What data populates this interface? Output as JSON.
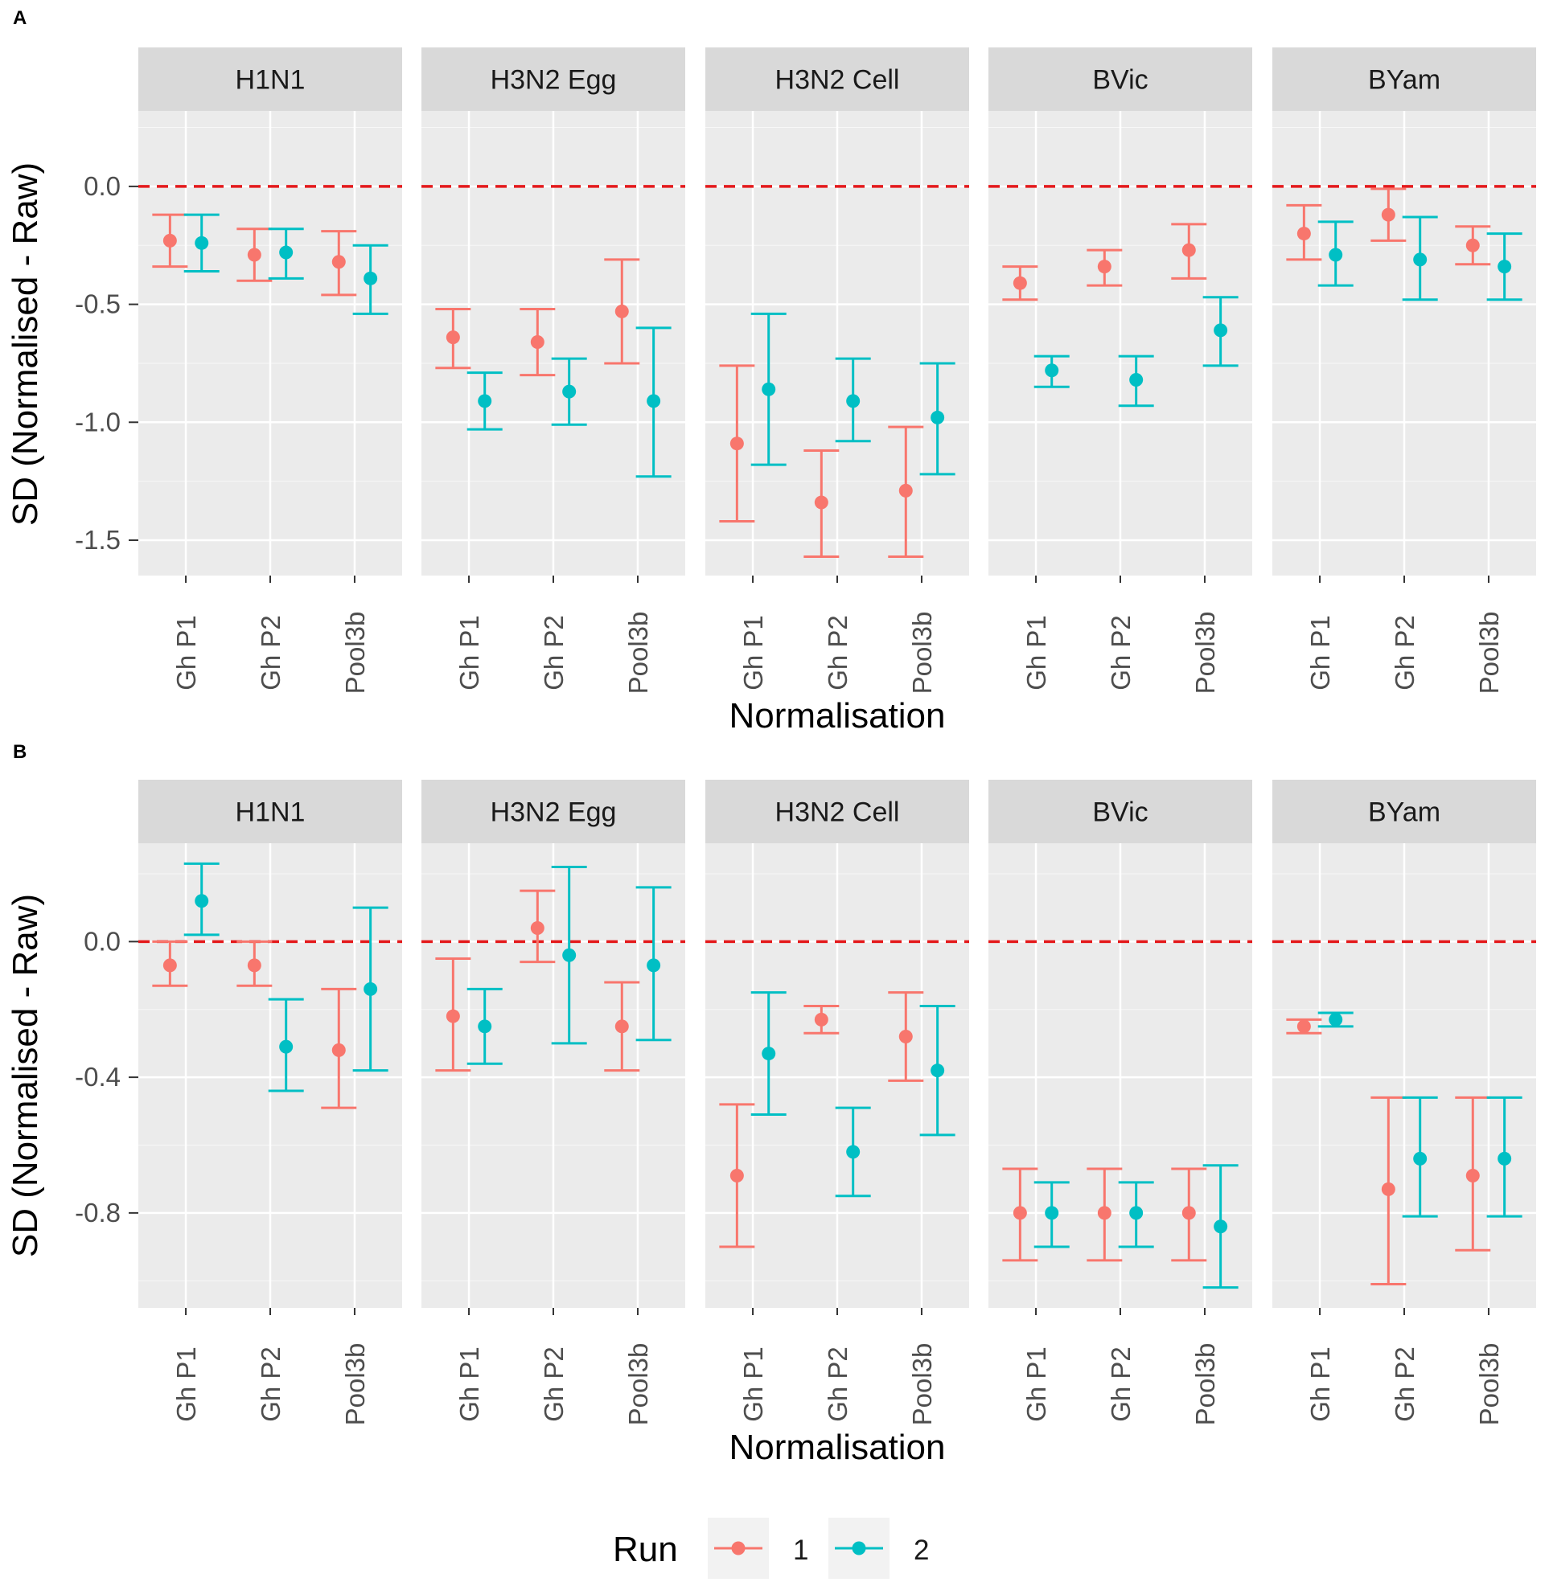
{
  "colors": {
    "run1": "#F8766D",
    "run2": "#00BFC4",
    "panel_bg": "#EBEBEB",
    "strip_bg": "#D9D9D9",
    "grid": "#FFFFFF",
    "ref_line": "#E41A1C",
    "tick": "#333333"
  },
  "legend": {
    "title": "Run",
    "entries": [
      {
        "label": "1",
        "series": "run1"
      },
      {
        "label": "2",
        "series": "run2"
      }
    ]
  },
  "chart_data": [
    {
      "panel": "A",
      "type": "errorbar",
      "xlabel": "Normalisation",
      "ylabel": "SD (Normalised - Raw)",
      "ylim": [
        -1.65,
        0.32
      ],
      "yticks": [
        0.0,
        -0.5,
        -1.0,
        -1.5
      ],
      "ytick_labels": [
        "0.0",
        "-0.5",
        "-1.0",
        "-1.5"
      ],
      "reference_line": 0.0,
      "categories": [
        "Gh P1",
        "Gh P2",
        "Pool3b"
      ],
      "facets": [
        {
          "label": "H1N1",
          "series": [
            {
              "run": "1",
              "mean": [
                -0.23,
                -0.29,
                -0.32
              ],
              "lower": [
                -0.34,
                -0.4,
                -0.46
              ],
              "upper": [
                -0.12,
                -0.18,
                -0.19
              ]
            },
            {
              "run": "2",
              "mean": [
                -0.24,
                -0.28,
                -0.39
              ],
              "lower": [
                -0.36,
                -0.39,
                -0.54
              ],
              "upper": [
                -0.12,
                -0.18,
                -0.25
              ]
            }
          ]
        },
        {
          "label": "H3N2 Egg",
          "series": [
            {
              "run": "1",
              "mean": [
                -0.64,
                -0.66,
                -0.53
              ],
              "lower": [
                -0.77,
                -0.8,
                -0.75
              ],
              "upper": [
                -0.52,
                -0.52,
                -0.31
              ]
            },
            {
              "run": "2",
              "mean": [
                -0.91,
                -0.87,
                -0.91
              ],
              "lower": [
                -1.03,
                -1.01,
                -1.23
              ],
              "upper": [
                -0.79,
                -0.73,
                -0.6
              ]
            }
          ]
        },
        {
          "label": "H3N2 Cell",
          "series": [
            {
              "run": "1",
              "mean": [
                -1.09,
                -1.34,
                -1.29
              ],
              "lower": [
                -1.42,
                -1.57,
                -1.57
              ],
              "upper": [
                -0.76,
                -1.12,
                -1.02
              ]
            },
            {
              "run": "2",
              "mean": [
                -0.86,
                -0.91,
                -0.98
              ],
              "lower": [
                -1.18,
                -1.08,
                -1.22
              ],
              "upper": [
                -0.54,
                -0.73,
                -0.75
              ]
            }
          ]
        },
        {
          "label": "BVic",
          "series": [
            {
              "run": "1",
              "mean": [
                -0.41,
                -0.34,
                -0.27
              ],
              "lower": [
                -0.48,
                -0.42,
                -0.39
              ],
              "upper": [
                -0.34,
                -0.27,
                -0.16
              ]
            },
            {
              "run": "2",
              "mean": [
                -0.78,
                -0.82,
                -0.61
              ],
              "lower": [
                -0.85,
                -0.93,
                -0.76
              ],
              "upper": [
                -0.72,
                -0.72,
                -0.47
              ]
            }
          ]
        },
        {
          "label": "BYam",
          "series": [
            {
              "run": "1",
              "mean": [
                -0.2,
                -0.12,
                -0.25
              ],
              "lower": [
                -0.31,
                -0.23,
                -0.33
              ],
              "upper": [
                -0.08,
                -0.01,
                -0.17
              ]
            },
            {
              "run": "2",
              "mean": [
                -0.29,
                -0.31,
                -0.34
              ],
              "lower": [
                -0.42,
                -0.48,
                -0.48
              ],
              "upper": [
                -0.15,
                -0.13,
                -0.2
              ]
            }
          ]
        }
      ]
    },
    {
      "panel": "B",
      "type": "errorbar",
      "xlabel": "Normalisation",
      "ylabel": "SD (Normalised - Raw)",
      "ylim": [
        -1.08,
        0.29
      ],
      "yticks": [
        0.0,
        -0.4,
        -0.8
      ],
      "ytick_labels": [
        "0.0",
        "-0.4",
        "-0.8"
      ],
      "reference_line": 0.0,
      "categories": [
        "Gh P1",
        "Gh P2",
        "Pool3b"
      ],
      "facets": [
        {
          "label": "H1N1",
          "series": [
            {
              "run": "1",
              "mean": [
                -0.07,
                -0.07,
                -0.32
              ],
              "lower": [
                -0.13,
                -0.13,
                -0.49
              ],
              "upper": [
                0.0,
                0.0,
                -0.14
              ]
            },
            {
              "run": "2",
              "mean": [
                0.12,
                -0.31,
                -0.14
              ],
              "lower": [
                0.02,
                -0.44,
                -0.38
              ],
              "upper": [
                0.23,
                -0.17,
                0.1
              ]
            }
          ]
        },
        {
          "label": "H3N2 Egg",
          "series": [
            {
              "run": "1",
              "mean": [
                -0.22,
                0.04,
                -0.25
              ],
              "lower": [
                -0.38,
                -0.06,
                -0.38
              ],
              "upper": [
                -0.05,
                0.15,
                -0.12
              ]
            },
            {
              "run": "2",
              "mean": [
                -0.25,
                -0.04,
                -0.07
              ],
              "lower": [
                -0.36,
                -0.3,
                -0.29
              ],
              "upper": [
                -0.14,
                0.22,
                0.16
              ]
            }
          ]
        },
        {
          "label": "H3N2 Cell",
          "series": [
            {
              "run": "1",
              "mean": [
                -0.69,
                -0.23,
                -0.28
              ],
              "lower": [
                -0.9,
                -0.27,
                -0.41
              ],
              "upper": [
                -0.48,
                -0.19,
                -0.15
              ]
            },
            {
              "run": "2",
              "mean": [
                -0.33,
                -0.62,
                -0.38
              ],
              "lower": [
                -0.51,
                -0.75,
                -0.57
              ],
              "upper": [
                -0.15,
                -0.49,
                -0.19
              ]
            }
          ]
        },
        {
          "label": "BVic",
          "series": [
            {
              "run": "1",
              "mean": [
                -0.8,
                -0.8,
                -0.8
              ],
              "lower": [
                -0.94,
                -0.94,
                -0.94
              ],
              "upper": [
                -0.67,
                -0.67,
                -0.67
              ]
            },
            {
              "run": "2",
              "mean": [
                -0.8,
                -0.8,
                -0.84
              ],
              "lower": [
                -0.9,
                -0.9,
                -1.02
              ],
              "upper": [
                -0.71,
                -0.71,
                -0.66
              ]
            }
          ]
        },
        {
          "label": "BYam",
          "series": [
            {
              "run": "1",
              "mean": [
                -0.25,
                -0.73,
                -0.69
              ],
              "lower": [
                -0.27,
                -1.01,
                -0.91
              ],
              "upper": [
                -0.23,
                -0.46,
                -0.46
              ]
            },
            {
              "run": "2",
              "mean": [
                -0.23,
                -0.64,
                -0.64
              ],
              "lower": [
                -0.25,
                -0.81,
                -0.81
              ],
              "upper": [
                -0.21,
                -0.46,
                -0.46
              ]
            }
          ]
        }
      ]
    }
  ]
}
